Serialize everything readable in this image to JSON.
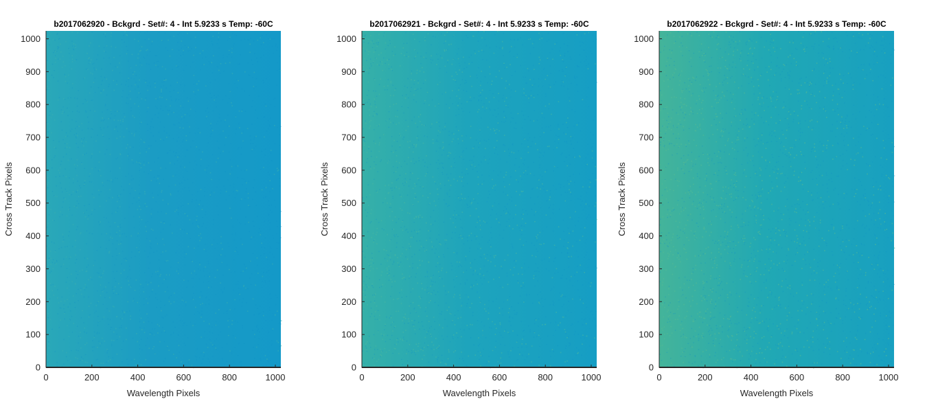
{
  "chart_data": [
    {
      "type": "heatmap",
      "title": "b2017062920 - Bckgrd - Set#: 4 - Int 5.9233 s Temp: -60C",
      "xlabel": "Wavelength Pixels",
      "ylabel": "Cross Track Pixels",
      "xlim": [
        0,
        1024
      ],
      "ylim": [
        0,
        1024
      ],
      "xticks": [
        0,
        200,
        400,
        600,
        800,
        1000
      ],
      "yticks": [
        0,
        100,
        200,
        300,
        400,
        500,
        600,
        700,
        800,
        900,
        1000
      ],
      "grid": false,
      "colors": {
        "base": "#1b9cc4",
        "left_tint": "#2aa8b8",
        "right_tint": "#1499c8",
        "speckle": "#3aaeb0"
      },
      "intensity_gradient": [
        0.42,
        0.15
      ]
    },
    {
      "type": "heatmap",
      "title": "b2017062921 - Bckgrd - Set#: 4 - Int 5.9233 s Temp: -60C",
      "xlabel": "Wavelength Pixels",
      "ylabel": "Cross Track Pixels",
      "xlim": [
        0,
        1024
      ],
      "ylim": [
        0,
        1024
      ],
      "xticks": [
        0,
        200,
        400,
        600,
        800,
        1000
      ],
      "yticks": [
        0,
        100,
        200,
        300,
        400,
        500,
        600,
        700,
        800,
        900,
        1000
      ],
      "grid": false,
      "colors": {
        "base": "#1ea4bc",
        "left_tint": "#36b0a8",
        "right_tint": "#169ec4",
        "speckle": "#4ab8a0"
      },
      "intensity_gradient": [
        0.55,
        0.18
      ]
    },
    {
      "type": "heatmap",
      "title": "b2017062922 - Bckgrd - Set#: 4 - Int 5.9233 s Temp: -60C",
      "xlabel": "Wavelength Pixels",
      "ylabel": "Cross Track Pixels",
      "xlim": [
        0,
        1024
      ],
      "ylim": [
        0,
        1024
      ],
      "xticks": [
        0,
        200,
        400,
        600,
        800,
        1000
      ],
      "yticks": [
        0,
        100,
        200,
        300,
        400,
        500,
        600,
        700,
        800,
        900,
        1000
      ],
      "grid": false,
      "colors": {
        "base": "#21a8b4",
        "left_tint": "#44b49a",
        "right_tint": "#18a0c0",
        "speckle": "#58bc92"
      },
      "intensity_gradient": [
        0.7,
        0.22
      ]
    }
  ]
}
